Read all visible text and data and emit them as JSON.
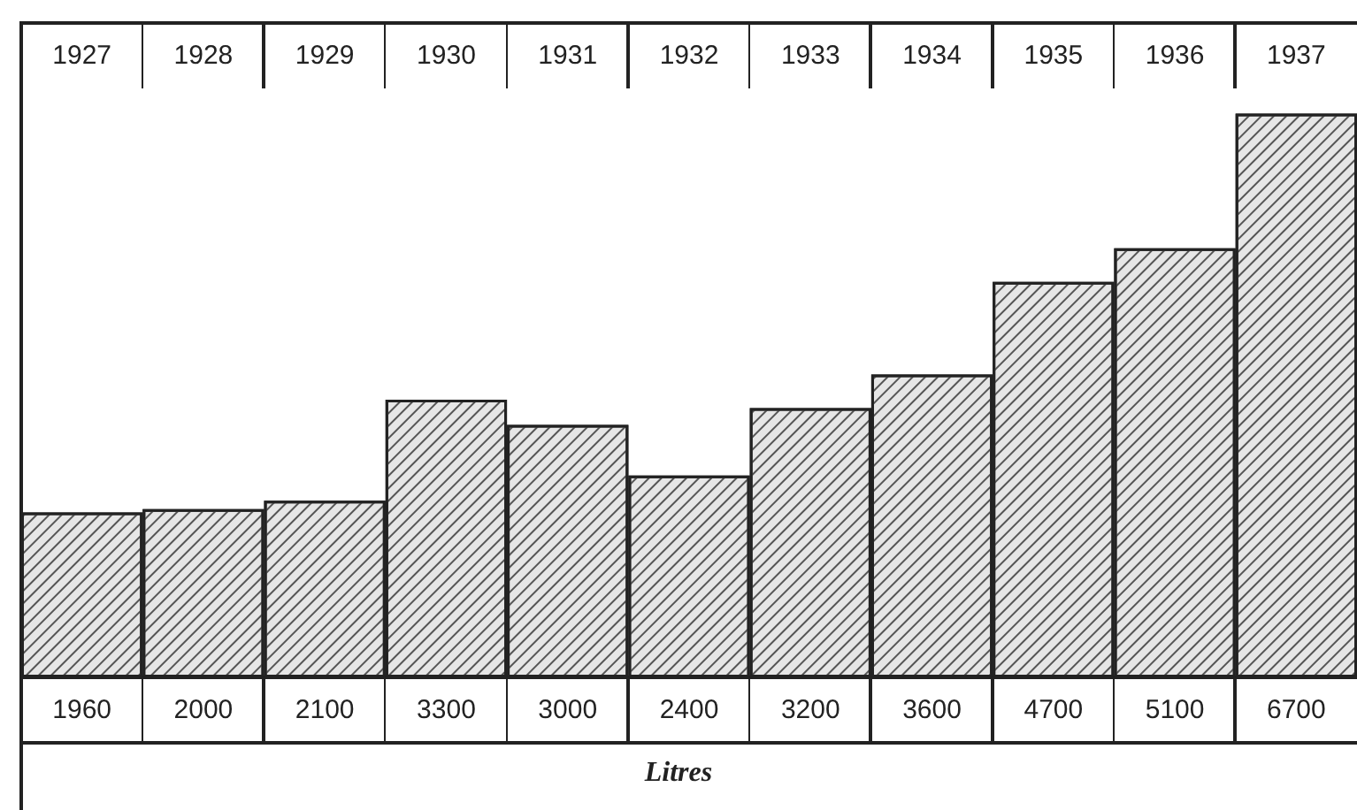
{
  "chart_data": {
    "type": "bar",
    "xlabel": "Litres",
    "categories": [
      "1927",
      "1928",
      "1929",
      "1930",
      "1931",
      "1932",
      "1933",
      "1934",
      "1935",
      "1936",
      "1937"
    ],
    "values": [
      1960,
      2000,
      2100,
      3300,
      3000,
      2400,
      3200,
      3600,
      4700,
      5100,
      6700
    ],
    "color": "#e6e6e6",
    "data_labels": true
  }
}
